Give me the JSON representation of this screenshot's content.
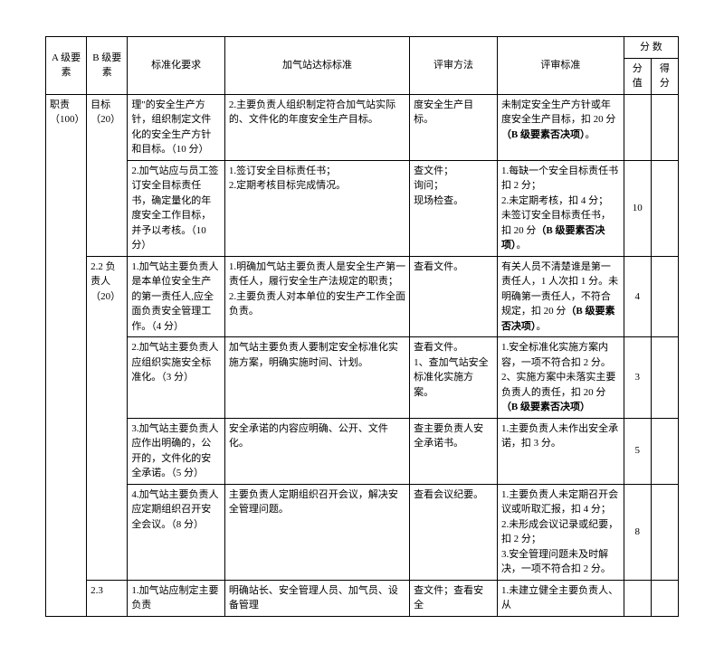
{
  "header": {
    "a_element": "A 级要素",
    "b_element": "B 级要素",
    "requirement": "标准化要求",
    "station_standard": "加气站达标标准",
    "review_method": "评审方法",
    "review_criteria": "评审标准",
    "scores": "分    数",
    "score_value": "分值",
    "score_got": "得分"
  },
  "a_label": "职责（100）",
  "b1_label": "目标（20）",
  "b2_label": "2.2 负责人（20）",
  "b3_label": "2.3",
  "rows": [
    {
      "req": "理\"的安全生产方针，组织制定文件化的安全生产方针和目标。（10 分）",
      "std": "2.主要负责人组织制定符合加气站实际的、文件化的年度安全生产目标。",
      "method": "度安全生产目标。",
      "criteria": "未制定安全生产方针或年度安全生产目标，扣 20 分（B 级要素否决项）。",
      "criteria_bold": "（B 级要素否决项）",
      "score": ""
    },
    {
      "req": "2.加气站应与员工签订安全目标责任书，确定量化的年度安全工作目标，并予以考核。（10 分）",
      "std": "1.签订安全目标责任书；\n2.定期考核目标完成情况。",
      "method": "查文件；\n询问；\n现场检查。",
      "criteria": "1.每缺一个安全目标责任书扣 2 分；\n2.未定期考核，扣 4 分；\n未签订安全目标责任书，扣 20 分（B 级要素否决项）。",
      "score": "10"
    },
    {
      "req": "1.加气站主要负责人是本单位安全生产的第一责任人,应全面负责安全管理工作。（4 分）",
      "std": "1.明确加气站主要负责人是安全生产第一责任人，履行安全生产法规定的职责；\n2.主要负责人对本单位的安生产工作全面负责。",
      "method": "查看文件。",
      "criteria": "有关人员不清楚谁是第一责任人，1 人次扣 1 分。未明确第一责任人，不符合规定，扣 20 分（B 级要素否决项）。",
      "score": "4"
    },
    {
      "req": "2.加气站主要负责人应组织实施安全标准化。（3 分）",
      "std": "加气站主要负责人要制定安全标准化实施方案，明确实施时间、计划。",
      "method": "查看文件。\n1、查加气站安全标准化实施方案。",
      "criteria": "1.安全标准化实施方案内容，一项不符合扣 2 分。\n2、实施方案中未落实主要负责人的责任，扣 20 分（B 级要素否决项）",
      "score": "3"
    },
    {
      "req": "3.加气站主要负责人应作出明确的，公开的，文件化的安全承诺。（5 分）",
      "std": "安全承诺的内容应明确、公开、文件化。",
      "method": "查主要负责人安全承诺书。",
      "criteria": "1.主要负责人未作出安全承诺，扣 3 分。",
      "score": "5"
    },
    {
      "req": "4.加气站主要负责人应定期组织召开安全会议。（8 分）",
      "std": "主要负责人定期组织召开会议，解决安全管理问题。",
      "method": "查看会议纪要。",
      "criteria": "1.主要负责人未定期召开会议或听取汇报，扣 4 分；\n2.未形成会议记录或纪要，扣 2 分；\n3.安全管理问题未及时解决，一项不符合扣 2 分。",
      "score": "8"
    },
    {
      "req": "1.加气站应制定主要负责",
      "std": "明确站长、安全管理人员、加气员、设备管理",
      "method": "查文件；查看安全",
      "criteria": "1.未建立健全主要负责人、从",
      "score": ""
    }
  ]
}
